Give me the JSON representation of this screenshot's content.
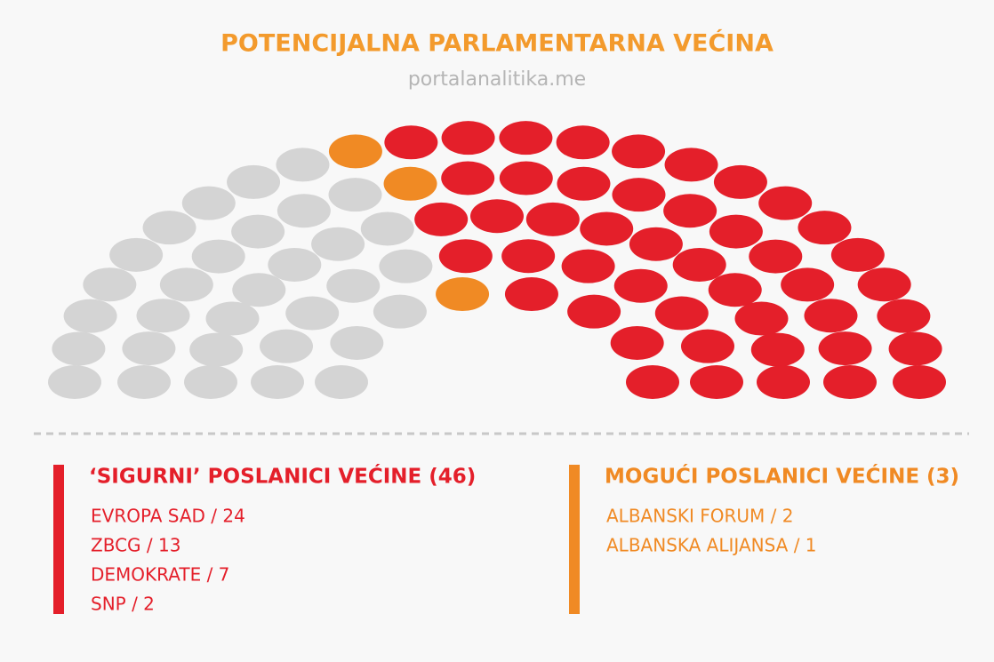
{
  "chart_data": {
    "type": "parliament",
    "title": "POTENCIJALNA PARLAMENTARNA VEĆINA",
    "subtitle": "portalanalitika.me",
    "series": [
      {
        "name": null,
        "color": "#d4d4d4",
        "values": 32
      },
      {
        "name": "MOGUĆI POSLANICI VEĆINE (3)",
        "color": "#f08a24",
        "values": 3,
        "parties": [
          "ALBANSKI FORUM / 2",
          "ALBANSKA ALIJANSA / 1"
        ]
      },
      {
        "name": "‘SIGURNI’ POSLANICI VEĆINE (46)",
        "color": "#e41f2a",
        "values": 46,
        "parties": [
          "EVROPA SAD / 24",
          "ZBCG / 13",
          "DEMOKRATE / 7",
          "SNP / 2"
        ]
      }
    ]
  }
}
